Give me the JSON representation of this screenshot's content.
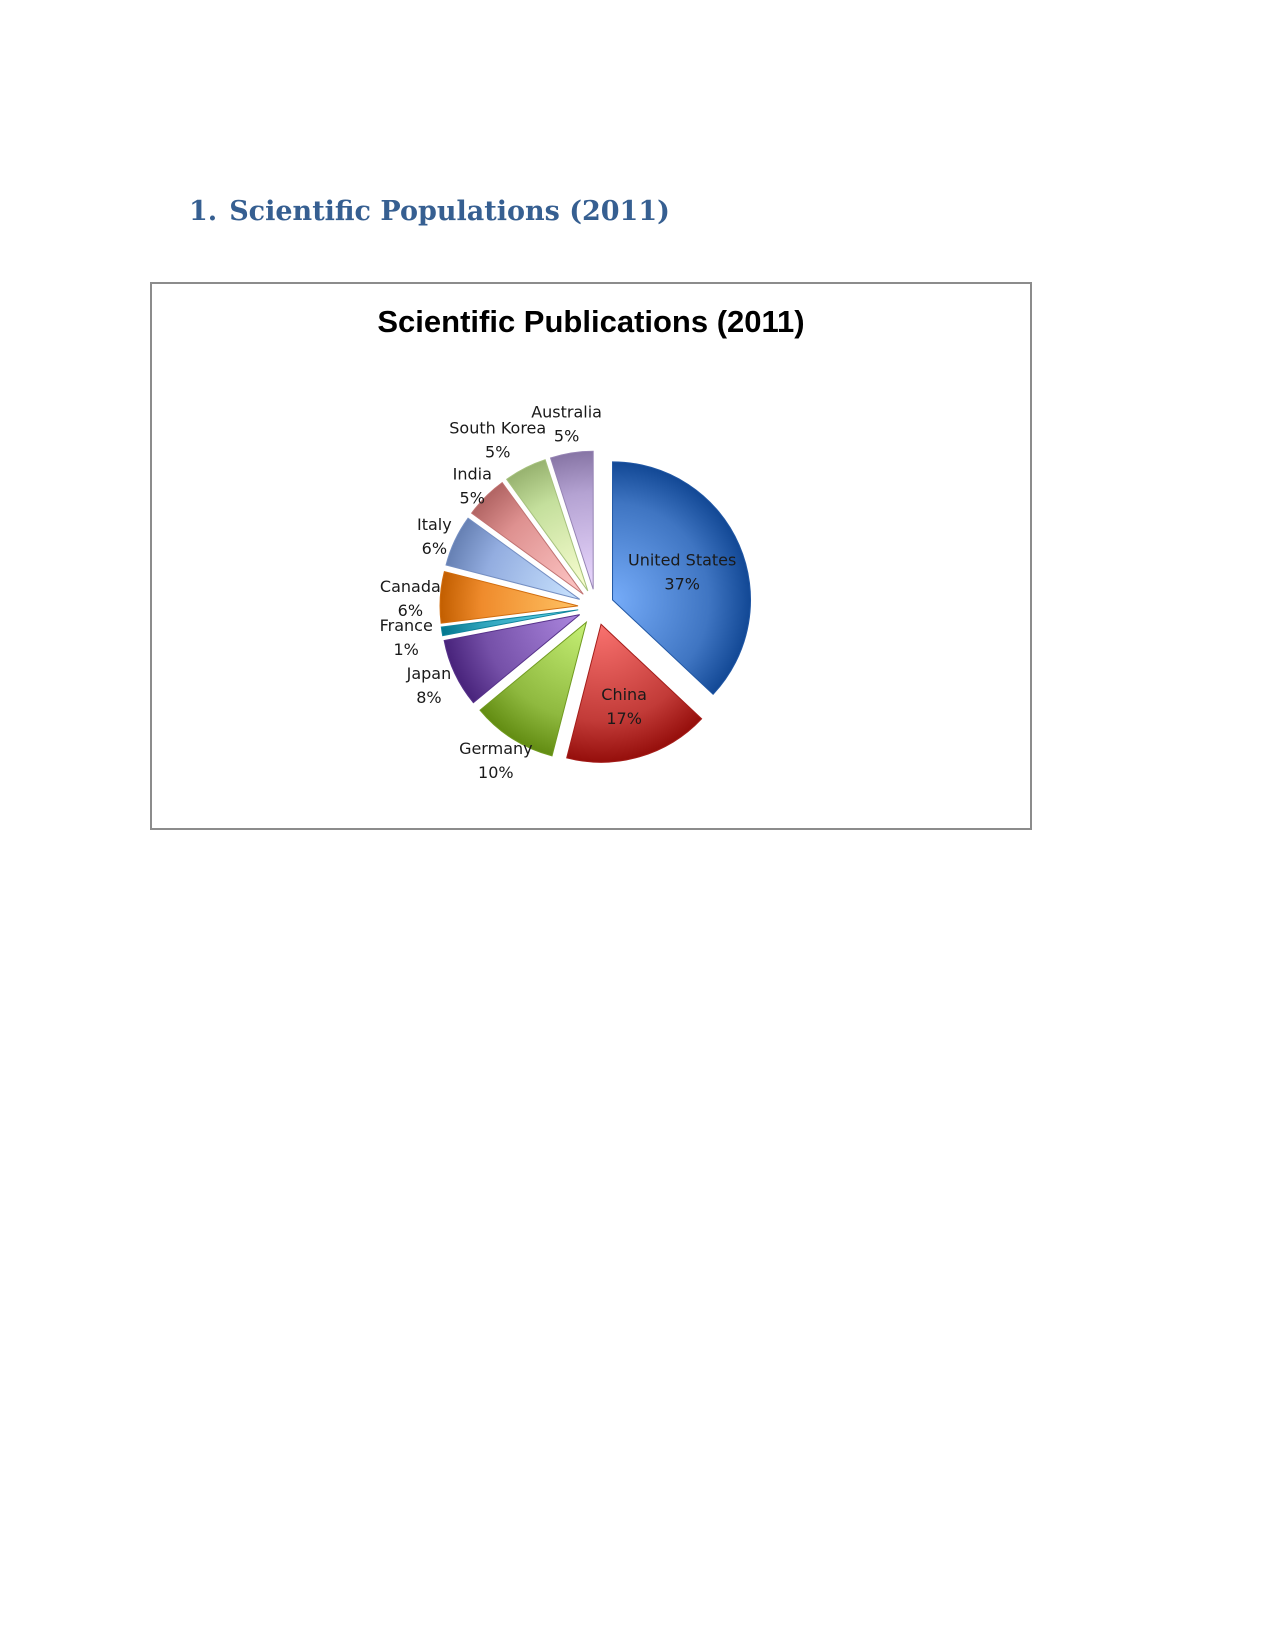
{
  "document": {
    "heading_number": "1.",
    "heading_text": "Scientific Populations (2011)"
  },
  "chart_data": {
    "type": "pie",
    "title": "Scientific Publications (2011)",
    "exploded": true,
    "legend": "none",
    "slices": [
      {
        "label": "United States",
        "value": 37,
        "display": "37%",
        "color": "#3f75c2"
      },
      {
        "label": "China",
        "value": 17,
        "display": "17%",
        "color": "#c23b38"
      },
      {
        "label": "Germany",
        "value": 10,
        "display": "10%",
        "color": "#8fb93f"
      },
      {
        "label": "Japan",
        "value": 8,
        "display": "8%",
        "color": "#7550a8"
      },
      {
        "label": "France",
        "value": 1,
        "display": "1%",
        "color": "#2fa3bb"
      },
      {
        "label": "Canada",
        "value": 6,
        "display": "6%",
        "color": "#ef8b2c"
      },
      {
        "label": "Italy",
        "value": 6,
        "display": "6%",
        "color": "#93ade0"
      },
      {
        "label": "India",
        "value": 5,
        "display": "5%",
        "color": "#de9190"
      },
      {
        "label": "South Korea",
        "value": 5,
        "display": "5%",
        "color": "#c4df9c"
      },
      {
        "label": "Australia",
        "value": 5,
        "display": "5%",
        "color": "#b4a2d2"
      }
    ]
  }
}
